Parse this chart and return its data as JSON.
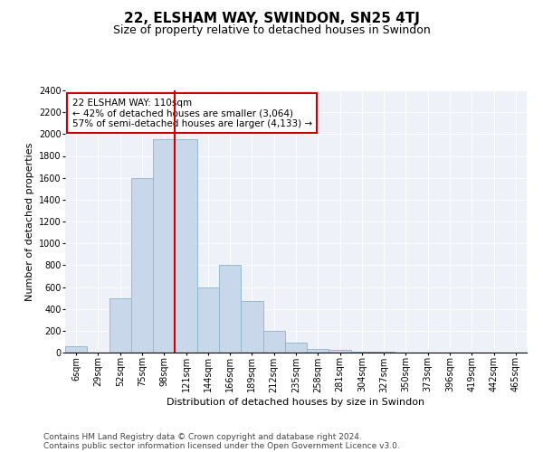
{
  "title": "22, ELSHAM WAY, SWINDON, SN25 4TJ",
  "subtitle": "Size of property relative to detached houses in Swindon",
  "xlabel": "Distribution of detached houses by size in Swindon",
  "ylabel": "Number of detached properties",
  "bar_color": "#c8d8ea",
  "bar_edge_color": "#8ab4cc",
  "background_color": "#eef2f8",
  "grid_color": "#ffffff",
  "categories": [
    "6sqm",
    "29sqm",
    "52sqm",
    "75sqm",
    "98sqm",
    "121sqm",
    "144sqm",
    "166sqm",
    "189sqm",
    "212sqm",
    "235sqm",
    "258sqm",
    "281sqm",
    "304sqm",
    "327sqm",
    "350sqm",
    "373sqm",
    "396sqm",
    "419sqm",
    "442sqm",
    "465sqm"
  ],
  "values": [
    55,
    0,
    500,
    1600,
    1950,
    1950,
    600,
    800,
    470,
    200,
    90,
    30,
    25,
    5,
    5,
    0,
    0,
    0,
    0,
    0,
    0
  ],
  "ylim": [
    0,
    2400
  ],
  "yticks": [
    0,
    200,
    400,
    600,
    800,
    1000,
    1200,
    1400,
    1600,
    1800,
    2000,
    2200,
    2400
  ],
  "vline_x": 4.5,
  "vline_color": "#cc0000",
  "annotation_text": "22 ELSHAM WAY: 110sqm\n← 42% of detached houses are smaller (3,064)\n57% of semi-detached houses are larger (4,133) →",
  "footer1": "Contains HM Land Registry data © Crown copyright and database right 2024.",
  "footer2": "Contains public sector information licensed under the Open Government Licence v3.0.",
  "title_fontsize": 11,
  "subtitle_fontsize": 9,
  "axis_label_fontsize": 8,
  "tick_fontsize": 7,
  "annotation_fontsize": 7.5,
  "footer_fontsize": 6.5
}
